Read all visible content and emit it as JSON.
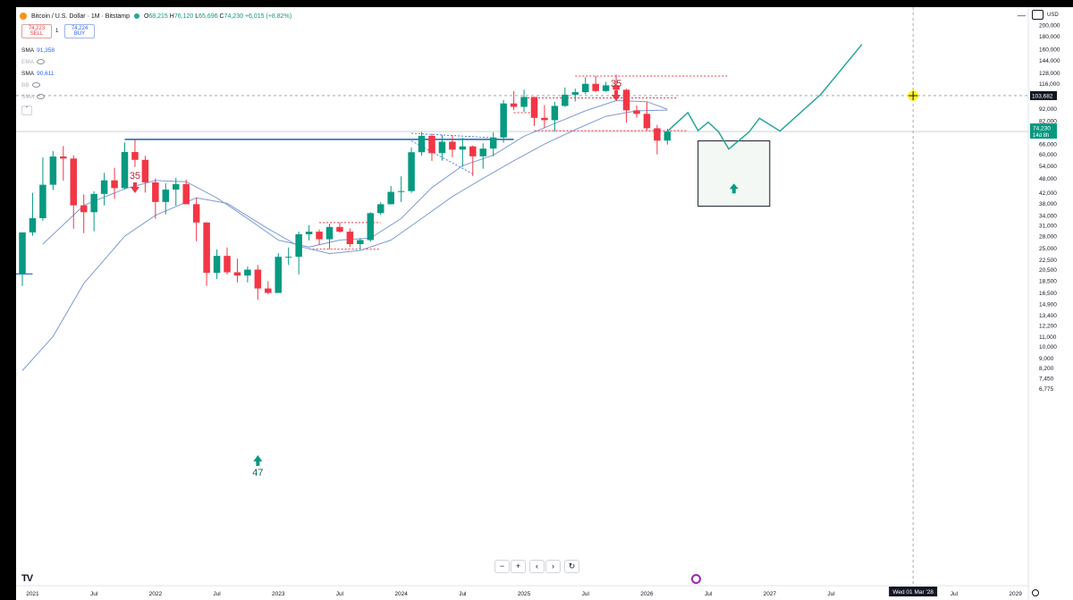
{
  "header": {
    "title": "Bitcoin / U.S. Dollar · 1M · Bitstamp",
    "ohlc": {
      "o_label": "O",
      "o": "68,215",
      "h_label": "H",
      "h": "76,120",
      "l_label": "L",
      "l": "65,696",
      "c_label": "C",
      "c": "74,230",
      "change": "+6,015 (+8.82%)"
    },
    "sell_price": "74,223",
    "sell_label": "SELL",
    "spread": "1",
    "buy_price": "74,224",
    "buy_label": "BUY",
    "currency": "USD"
  },
  "indicators": [
    {
      "name": "SMA",
      "value": "91,358",
      "visible": true
    },
    {
      "name": "EMA",
      "value": "",
      "visible": false
    },
    {
      "name": "SMA",
      "value": "90,611",
      "visible": true
    },
    {
      "name": "BB",
      "value": "",
      "visible": false
    },
    {
      "name": "SMA",
      "value": "",
      "visible": false
    }
  ],
  "price_labels": {
    "current": "74,230",
    "countdown": "14d 8h",
    "crosshair": "103,682"
  },
  "time_axis": {
    "cursor_label": "Wed 01 Mar '28",
    "labels": [
      {
        "text": "2021",
        "date": "2021-01"
      },
      {
        "text": "Jul",
        "date": "2021-07"
      },
      {
        "text": "2022",
        "date": "2022-01"
      },
      {
        "text": "Jul",
        "date": "2022-07"
      },
      {
        "text": "2023",
        "date": "2023-01"
      },
      {
        "text": "Jul",
        "date": "2023-07"
      },
      {
        "text": "2024",
        "date": "2024-01"
      },
      {
        "text": "Jul",
        "date": "2024-07"
      },
      {
        "text": "2025",
        "date": "2025-01"
      },
      {
        "text": "Jul",
        "date": "2025-07"
      },
      {
        "text": "2026",
        "date": "2026-01"
      },
      {
        "text": "Jul",
        "date": "2026-07"
      },
      {
        "text": "2027",
        "date": "2027-01"
      },
      {
        "text": "Jul",
        "date": "2027-07"
      },
      {
        "text": "Jul",
        "date": "2028-07"
      },
      {
        "text": "2029",
        "date": "2029-01"
      }
    ]
  },
  "annotations": {
    "top_2021": "35",
    "top_2025": "35",
    "bottom_2022": "47"
  },
  "nav": {
    "zoom_out": "−",
    "zoom_in": "+",
    "back": "‹",
    "forward": "›",
    "reset": "↻"
  },
  "logo": "TV",
  "colors": {
    "up": "#089981",
    "down": "#f23645",
    "sma": "#7e9bd6",
    "projection": "#26a69a",
    "level": "#1c5fb5",
    "dotted": "#f23645"
  },
  "chart_data": {
    "type": "candlestick",
    "scale": "log",
    "ylim": [
      6775,
      200000
    ],
    "y_ticks": [
      200000,
      180000,
      160000,
      144000,
      128000,
      116000,
      103682,
      92000,
      82000,
      74230,
      66000,
      60000,
      54000,
      48000,
      42000,
      38000,
      34000,
      31000,
      28000,
      25000,
      22500,
      20500,
      18500,
      16500,
      14900,
      13400,
      12200,
      11000,
      10000,
      9000,
      8200,
      7450,
      6775
    ],
    "candles": [
      {
        "date": "2020-12",
        "o": 19700,
        "h": 29000,
        "l": 17600,
        "c": 29000
      },
      {
        "date": "2021-01",
        "o": 29000,
        "h": 41900,
        "l": 28100,
        "c": 33100
      },
      {
        "date": "2021-02",
        "o": 33100,
        "h": 58300,
        "l": 32300,
        "c": 45200
      },
      {
        "date": "2021-03",
        "o": 45200,
        "h": 61800,
        "l": 43000,
        "c": 58800
      },
      {
        "date": "2021-04",
        "o": 58800,
        "h": 64800,
        "l": 47000,
        "c": 57700
      },
      {
        "date": "2021-05",
        "o": 57700,
        "h": 59500,
        "l": 30000,
        "c": 37300
      },
      {
        "date": "2021-06",
        "o": 37300,
        "h": 41300,
        "l": 28800,
        "c": 35000
      },
      {
        "date": "2021-07",
        "o": 35000,
        "h": 42500,
        "l": 29300,
        "c": 41500
      },
      {
        "date": "2021-08",
        "o": 41500,
        "h": 50500,
        "l": 37300,
        "c": 47100
      },
      {
        "date": "2021-09",
        "o": 47100,
        "h": 52900,
        "l": 39600,
        "c": 43800
      },
      {
        "date": "2021-10",
        "o": 43800,
        "h": 67000,
        "l": 43300,
        "c": 61300
      },
      {
        "date": "2021-11",
        "o": 61300,
        "h": 69000,
        "l": 53300,
        "c": 57000
      },
      {
        "date": "2021-12",
        "o": 57000,
        "h": 59100,
        "l": 42000,
        "c": 46200
      },
      {
        "date": "2022-01",
        "o": 46200,
        "h": 47900,
        "l": 32900,
        "c": 38500
      },
      {
        "date": "2022-02",
        "o": 38500,
        "h": 45800,
        "l": 34300,
        "c": 43200
      },
      {
        "date": "2022-03",
        "o": 43200,
        "h": 48200,
        "l": 37200,
        "c": 45500
      },
      {
        "date": "2022-04",
        "o": 45500,
        "h": 47400,
        "l": 37700,
        "c": 37700
      },
      {
        "date": "2022-05",
        "o": 37700,
        "h": 40000,
        "l": 26700,
        "c": 31800
      },
      {
        "date": "2022-06",
        "o": 31800,
        "h": 31900,
        "l": 17600,
        "c": 19900
      },
      {
        "date": "2022-07",
        "o": 19900,
        "h": 24700,
        "l": 18800,
        "c": 23300
      },
      {
        "date": "2022-08",
        "o": 23300,
        "h": 25200,
        "l": 19600,
        "c": 20000
      },
      {
        "date": "2022-09",
        "o": 20000,
        "h": 22700,
        "l": 18200,
        "c": 19400
      },
      {
        "date": "2022-10",
        "o": 19400,
        "h": 21100,
        "l": 18200,
        "c": 20500
      },
      {
        "date": "2022-11",
        "o": 20500,
        "h": 21400,
        "l": 15500,
        "c": 17200
      },
      {
        "date": "2022-12",
        "o": 17200,
        "h": 18400,
        "l": 16300,
        "c": 16500
      },
      {
        "date": "2023-01",
        "o": 16500,
        "h": 23900,
        "l": 16500,
        "c": 23100
      },
      {
        "date": "2023-02",
        "o": 23100,
        "h": 25200,
        "l": 21400,
        "c": 23100
      },
      {
        "date": "2023-03",
        "o": 23100,
        "h": 29200,
        "l": 19600,
        "c": 28500
      },
      {
        "date": "2023-04",
        "o": 28500,
        "h": 31000,
        "l": 26900,
        "c": 29200
      },
      {
        "date": "2023-05",
        "o": 29200,
        "h": 29800,
        "l": 25800,
        "c": 27200
      },
      {
        "date": "2023-06",
        "o": 27200,
        "h": 31400,
        "l": 24800,
        "c": 30500
      },
      {
        "date": "2023-07",
        "o": 30500,
        "h": 31800,
        "l": 28900,
        "c": 29200
      },
      {
        "date": "2023-08",
        "o": 29200,
        "h": 30100,
        "l": 25300,
        "c": 26000
      },
      {
        "date": "2023-09",
        "o": 26000,
        "h": 27500,
        "l": 24900,
        "c": 27000
      },
      {
        "date": "2023-10",
        "o": 27000,
        "h": 35000,
        "l": 26600,
        "c": 34700
      },
      {
        "date": "2023-11",
        "o": 34700,
        "h": 38400,
        "l": 34100,
        "c": 37700
      },
      {
        "date": "2023-12",
        "o": 37700,
        "h": 44700,
        "l": 37600,
        "c": 42300
      },
      {
        "date": "2024-01",
        "o": 42300,
        "h": 48900,
        "l": 38500,
        "c": 42600
      },
      {
        "date": "2024-02",
        "o": 42600,
        "h": 64000,
        "l": 41900,
        "c": 61200
      },
      {
        "date": "2024-03",
        "o": 61200,
        "h": 73800,
        "l": 59300,
        "c": 71300
      },
      {
        "date": "2024-04",
        "o": 71300,
        "h": 72800,
        "l": 56500,
        "c": 60700
      },
      {
        "date": "2024-05",
        "o": 60700,
        "h": 71900,
        "l": 56600,
        "c": 67500
      },
      {
        "date": "2024-06",
        "o": 67500,
        "h": 71900,
        "l": 58400,
        "c": 62700
      },
      {
        "date": "2024-07",
        "o": 62700,
        "h": 70000,
        "l": 53500,
        "c": 64600
      },
      {
        "date": "2024-08",
        "o": 64600,
        "h": 65100,
        "l": 49000,
        "c": 58900
      },
      {
        "date": "2024-09",
        "o": 58900,
        "h": 66500,
        "l": 52500,
        "c": 63300
      },
      {
        "date": "2024-10",
        "o": 63300,
        "h": 73600,
        "l": 58900,
        "c": 70200
      },
      {
        "date": "2024-11",
        "o": 70200,
        "h": 99600,
        "l": 66800,
        "c": 96400
      },
      {
        "date": "2024-12",
        "o": 96400,
        "h": 108300,
        "l": 90500,
        "c": 93400
      },
      {
        "date": "2025-01",
        "o": 93400,
        "h": 109600,
        "l": 89200,
        "c": 102400
      },
      {
        "date": "2025-02",
        "o": 102400,
        "h": 102500,
        "l": 78200,
        "c": 84300
      },
      {
        "date": "2025-03",
        "o": 84300,
        "h": 95000,
        "l": 76600,
        "c": 82500
      },
      {
        "date": "2025-04",
        "o": 82500,
        "h": 97900,
        "l": 74400,
        "c": 94200
      },
      {
        "date": "2025-05",
        "o": 94200,
        "h": 111900,
        "l": 93300,
        "c": 104600
      },
      {
        "date": "2025-06",
        "o": 104600,
        "h": 110600,
        "l": 98200,
        "c": 107100
      },
      {
        "date": "2025-07",
        "o": 107100,
        "h": 123200,
        "l": 105100,
        "c": 115700
      },
      {
        "date": "2025-08",
        "o": 115700,
        "h": 124500,
        "l": 107300,
        "c": 108200
      },
      {
        "date": "2025-09",
        "o": 108200,
        "h": 117900,
        "l": 107300,
        "c": 114100
      },
      {
        "date": "2025-10",
        "o": 114100,
        "h": 126200,
        "l": 103500,
        "c": 109500
      },
      {
        "date": "2025-11",
        "o": 109500,
        "h": 110600,
        "l": 80600,
        "c": 90400
      },
      {
        "date": "2025-12",
        "o": 90400,
        "h": 94600,
        "l": 84400,
        "c": 87500
      },
      {
        "date": "2026-01",
        "o": 87500,
        "h": 97900,
        "l": 75000,
        "c": 76500
      },
      {
        "date": "2026-02",
        "o": 76500,
        "h": 79000,
        "l": 60000,
        "c": 68200
      },
      {
        "date": "2026-03",
        "o": 68215,
        "h": 76120,
        "l": 65696,
        "c": 74230
      }
    ],
    "sma_fast": [
      [
        "2021-02",
        26000
      ],
      [
        "2021-06",
        37300
      ],
      [
        "2021-10",
        43500
      ],
      [
        "2022-01",
        47000
      ],
      [
        "2022-04",
        46500
      ],
      [
        "2022-07",
        40000
      ],
      [
        "2022-10",
        33000
      ],
      [
        "2023-01",
        27000
      ],
      [
        "2023-04",
        25300
      ],
      [
        "2023-07",
        27000
      ],
      [
        "2023-10",
        27500
      ],
      [
        "2024-01",
        33000
      ],
      [
        "2024-04",
        44000
      ],
      [
        "2024-07",
        54000
      ],
      [
        "2024-10",
        59500
      ],
      [
        "2025-01",
        71000
      ],
      [
        "2025-04",
        80000
      ],
      [
        "2025-07",
        90000
      ],
      [
        "2025-10",
        99000
      ],
      [
        "2026-01",
        98000
      ],
      [
        "2026-03",
        91358
      ]
    ],
    "sma_slow": [
      [
        "2020-12",
        8000
      ],
      [
        "2021-03",
        11000
      ],
      [
        "2021-06",
        18000
      ],
      [
        "2021-10",
        28000
      ],
      [
        "2022-01",
        34000
      ],
      [
        "2022-05",
        40000
      ],
      [
        "2022-08",
        38000
      ],
      [
        "2022-12",
        30000
      ],
      [
        "2023-03",
        25500
      ],
      [
        "2023-06",
        23800
      ],
      [
        "2023-09",
        24500
      ],
      [
        "2023-12",
        27000
      ],
      [
        "2024-03",
        33000
      ],
      [
        "2024-06",
        40500
      ],
      [
        "2024-09",
        48000
      ],
      [
        "2024-12",
        56500
      ],
      [
        "2025-03",
        66000
      ],
      [
        "2025-06",
        75500
      ],
      [
        "2025-09",
        85500
      ],
      [
        "2025-12",
        90000
      ],
      [
        "2026-03",
        90611
      ]
    ],
    "horizontal_level": {
      "price": 69000,
      "from": "2021-10",
      "to": "2024-12"
    },
    "support_line_2020": {
      "price": 19700,
      "from": "2020-12",
      "to": "2021-01"
    },
    "dotted_levels": [
      {
        "price": 31800,
        "from": "2023-05",
        "to": "2023-11"
      },
      {
        "price": 24800,
        "from": "2023-04",
        "to": "2023-11"
      },
      {
        "price": 101500,
        "from": "2025-01",
        "to": "2026-02"
      },
      {
        "price": 88500,
        "from": "2024-12",
        "to": "2025-02"
      },
      {
        "price": 101500,
        "from": "2025-08",
        "to": "2026-04"
      },
      {
        "price": 74800,
        "from": "2025-02",
        "to": "2026-05"
      },
      {
        "price": 124500,
        "from": "2025-06",
        "to": "2026-09"
      }
    ],
    "triangle_pattern": [
      [
        "2024-02",
        73000
      ],
      [
        "2024-10",
        70000
      ],
      [
        "2024-02",
        68000
      ],
      [
        "2024-08",
        50000
      ]
    ],
    "projection_path": [
      [
        "2026-03",
        74230
      ],
      [
        "2026-05",
        88500
      ],
      [
        "2026-06",
        74800
      ],
      [
        "2026-07",
        81000
      ],
      [
        "2026-08",
        74000
      ],
      [
        "2026-09",
        63000
      ],
      [
        "2026-11",
        74000
      ],
      [
        "2026-12",
        84000
      ],
      [
        "2027-02",
        74500
      ],
      [
        "2027-06",
        105000
      ],
      [
        "2027-10",
        167000
      ]
    ],
    "box_zone": {
      "from": "2026-06",
      "to": "2027-01",
      "top": 68000,
      "bottom": 37000
    },
    "box_arrow_price": 43500
  }
}
